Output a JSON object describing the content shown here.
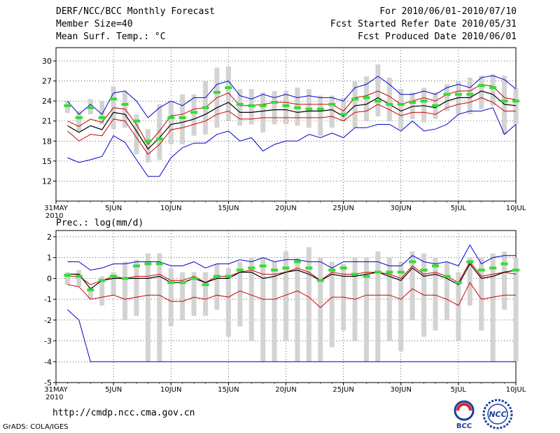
{
  "header": {
    "left": [
      "DERF/NCC/BCC Monthly Forecast",
      "Member Size=40",
      "Mean Surf. Temp.: °C"
    ],
    "right": [
      "For 2010/06/01-2010/07/10",
      "Fcst Started Refer Date 2010/05/31",
      "Fcst Produced Date 2010/06/01"
    ]
  },
  "panel2_title": "Prec.: log(mm/d)",
  "footer": {
    "url": "http://cmdp.ncc.cma.gov.cn",
    "credit": "GrADS: COLA/IGES",
    "logo_bcc": "BCC",
    "logo_ncc": "NCC"
  },
  "colors": {
    "bar": "#d3d3d3",
    "green": "#33dd33",
    "blue": "#0000cc",
    "red": "#cc0000",
    "mean": "#000000"
  },
  "chart_data": [
    {
      "type": "line",
      "title": "Mean Surf. Temp.: °C",
      "x_ticks": [
        {
          "day": 0,
          "label": "31MAY",
          "sub": "2010"
        },
        {
          "day": 5,
          "label": "5JUN"
        },
        {
          "day": 10,
          "label": "10JUN"
        },
        {
          "day": 15,
          "label": "15JUN"
        },
        {
          "day": 20,
          "label": "20JUN"
        },
        {
          "day": 25,
          "label": "25JUN"
        },
        {
          "day": 30,
          "label": "30JUN"
        },
        {
          "day": 35,
          "label": "5JUL"
        },
        {
          "day": 40,
          "label": "10JUL"
        }
      ],
      "xlim": [
        0,
        40
      ],
      "ylim": [
        9,
        32
      ],
      "y_ticks": [
        12,
        15,
        18,
        21,
        24,
        27,
        30
      ],
      "days": [
        1,
        2,
        3,
        4,
        5,
        6,
        7,
        8,
        9,
        10,
        11,
        12,
        13,
        14,
        15,
        16,
        17,
        18,
        19,
        20,
        21,
        22,
        23,
        24,
        25,
        26,
        27,
        28,
        29,
        30,
        31,
        32,
        33,
        34,
        35,
        36,
        37,
        38,
        39,
        40
      ],
      "bars_low": [
        22.2,
        19.5,
        22.0,
        20.5,
        19.8,
        20.0,
        16.0,
        14.8,
        15.2,
        17.5,
        17.5,
        18.8,
        19.0,
        20.0,
        21.0,
        20.3,
        20.5,
        19.3,
        20.5,
        20.5,
        20.3,
        20.0,
        18.8,
        20.0,
        21.0,
        20.0,
        21.0,
        21.7,
        21.0,
        19.8,
        21.3,
        20.8,
        21.3,
        22.5,
        22.0,
        22.0,
        22.8,
        23.3,
        19.0,
        20.5
      ],
      "bars_high": [
        24.0,
        22.5,
        24.3,
        24.0,
        26.2,
        25.5,
        22.0,
        19.8,
        23.5,
        24.0,
        25.0,
        25.0,
        27.0,
        29.0,
        29.2,
        25.8,
        25.8,
        25.3,
        25.5,
        25.5,
        26.0,
        25.8,
        24.8,
        24.8,
        24.5,
        27.0,
        27.7,
        29.5,
        27.5,
        25.8,
        25.3,
        26.0,
        25.3,
        26.5,
        27.0,
        27.5,
        27.8,
        28.0,
        27.8,
        26.0
      ],
      "series": [
        {
          "name": "ensemble max",
          "color": "blue",
          "values": [
            24.0,
            22.0,
            23.5,
            22.0,
            25.2,
            25.5,
            24.0,
            21.5,
            23.0,
            24.0,
            23.3,
            24.5,
            24.5,
            26.5,
            27.0,
            24.8,
            24.3,
            25.0,
            24.5,
            25.0,
            24.5,
            24.8,
            24.5,
            24.5,
            24.0,
            26.0,
            26.5,
            27.7,
            26.5,
            25.0,
            25.0,
            25.5,
            25.0,
            26.0,
            26.5,
            26.0,
            27.5,
            27.8,
            27.2,
            25.8
          ]
        },
        {
          "name": "upper quartile",
          "color": "red",
          "values": [
            21.0,
            20.2,
            21.3,
            20.8,
            23.0,
            22.8,
            20.5,
            17.5,
            19.5,
            21.8,
            22.0,
            22.8,
            23.0,
            24.5,
            25.2,
            23.3,
            23.3,
            23.5,
            23.8,
            23.8,
            23.5,
            23.5,
            23.5,
            23.5,
            22.5,
            24.5,
            24.8,
            25.5,
            24.7,
            23.5,
            24.0,
            24.5,
            24.0,
            25.0,
            25.5,
            25.5,
            26.5,
            26.2,
            24.5,
            24.2
          ]
        },
        {
          "name": "ensemble mean",
          "color": "mean",
          "values": [
            20.3,
            19.3,
            20.3,
            19.7,
            22.3,
            22.0,
            19.5,
            16.8,
            18.5,
            20.5,
            20.8,
            21.3,
            22.0,
            23.0,
            23.8,
            22.3,
            22.3,
            22.5,
            22.7,
            22.7,
            22.3,
            22.5,
            22.5,
            22.7,
            21.7,
            23.3,
            23.5,
            24.5,
            23.5,
            22.5,
            23.2,
            23.3,
            23.0,
            24.0,
            24.5,
            24.5,
            25.5,
            25.0,
            23.5,
            23.3
          ]
        },
        {
          "name": "lower quartile",
          "color": "red",
          "values": [
            19.5,
            18.0,
            19.0,
            18.8,
            21.3,
            21.0,
            18.5,
            16.0,
            17.5,
            19.7,
            20.0,
            20.5,
            21.0,
            22.0,
            22.5,
            21.3,
            21.3,
            21.5,
            21.5,
            21.5,
            21.5,
            21.5,
            21.5,
            21.7,
            21.0,
            22.3,
            22.5,
            23.5,
            22.7,
            21.8,
            22.3,
            22.3,
            22.0,
            23.0,
            23.5,
            23.8,
            24.5,
            23.8,
            22.5,
            22.5
          ]
        },
        {
          "name": "ensemble min",
          "color": "blue",
          "values": [
            15.5,
            14.8,
            15.2,
            15.7,
            18.8,
            17.8,
            15.2,
            12.7,
            12.7,
            15.5,
            17.0,
            17.7,
            17.7,
            19.0,
            19.5,
            18.0,
            18.5,
            16.5,
            17.5,
            18.0,
            18.0,
            19.0,
            18.5,
            19.2,
            18.5,
            20.0,
            20.0,
            20.5,
            20.5,
            19.5,
            21.0,
            19.5,
            19.8,
            20.5,
            22.0,
            22.5,
            22.5,
            23.0,
            19.0,
            20.5
          ]
        }
      ],
      "green_marks": [
        23.3,
        21.5,
        23.0,
        21.5,
        24.3,
        23.5,
        21.0,
        18.0,
        18.3,
        21.5,
        21.5,
        22.3,
        23.0,
        25.3,
        26.0,
        23.5,
        23.3,
        23.3,
        23.8,
        23.3,
        23.0,
        22.8,
        22.8,
        23.5,
        22.0,
        24.3,
        24.5,
        24.0,
        23.5,
        23.5,
        23.8,
        24.0,
        23.3,
        25.0,
        25.0,
        25.0,
        26.3,
        26.0,
        24.0,
        24.0
      ]
    },
    {
      "type": "line",
      "title": "Prec.: log(mm/d)",
      "x_ticks": [
        {
          "day": 0,
          "label": "31MAY",
          "sub": "2010"
        },
        {
          "day": 5,
          "label": "5JUN"
        },
        {
          "day": 10,
          "label": "10JUN"
        },
        {
          "day": 15,
          "label": "15JUN"
        },
        {
          "day": 20,
          "label": "20JUN"
        },
        {
          "day": 25,
          "label": "25JUN"
        },
        {
          "day": 30,
          "label": "30JUN"
        },
        {
          "day": 35,
          "label": "5JUL"
        },
        {
          "day": 40,
          "label": "10JUL"
        }
      ],
      "xlim": [
        0,
        40
      ],
      "ylim": [
        -5,
        2.3
      ],
      "y_ticks": [
        -5,
        -4,
        -3,
        -2,
        -1,
        0,
        1,
        2
      ],
      "days": [
        1,
        2,
        3,
        4,
        5,
        6,
        7,
        8,
        9,
        10,
        11,
        12,
        13,
        14,
        15,
        16,
        17,
        18,
        19,
        20,
        21,
        22,
        23,
        24,
        25,
        26,
        27,
        28,
        29,
        30,
        31,
        32,
        33,
        34,
        35,
        36,
        37,
        38,
        39,
        40
      ],
      "bars_low": [
        -0.3,
        -0.4,
        -1.0,
        -1.3,
        -0.8,
        -2.0,
        -1.8,
        -4.0,
        -4.0,
        -2.3,
        -2.0,
        -1.8,
        -1.8,
        -1.5,
        -2.8,
        -2.3,
        -3.0,
        -4.0,
        -4.0,
        -3.0,
        -4.0,
        -4.0,
        -4.0,
        -3.3,
        -2.5,
        -3.0,
        -4.0,
        -4.0,
        -3.0,
        -3.5,
        -2.0,
        -2.8,
        -2.5,
        -2.0,
        -3.0,
        -1.3,
        -2.5,
        -4.0,
        -1.5,
        -4.0
      ],
      "bars_high": [
        0.3,
        0.4,
        -0.4,
        0.1,
        0.3,
        0.8,
        0.9,
        1.2,
        1.2,
        0.5,
        0.3,
        0.3,
        0.3,
        0.7,
        0.5,
        0.8,
        1.0,
        1.0,
        0.8,
        1.3,
        1.0,
        1.5,
        1.0,
        0.8,
        0.7,
        1.0,
        1.0,
        1.3,
        1.0,
        0.8,
        1.3,
        1.2,
        1.0,
        0.8,
        0.3,
        1.0,
        1.0,
        1.2,
        1.3,
        1.0
      ],
      "series": [
        {
          "name": "ensemble max",
          "color": "blue",
          "values": [
            0.8,
            0.8,
            0.4,
            0.5,
            0.7,
            0.7,
            0.8,
            0.8,
            0.8,
            0.6,
            0.6,
            0.8,
            0.5,
            0.7,
            0.7,
            0.9,
            0.8,
            1.0,
            0.8,
            0.9,
            0.9,
            0.8,
            0.8,
            0.5,
            0.8,
            0.8,
            0.8,
            0.8,
            0.6,
            0.6,
            1.1,
            0.8,
            0.7,
            0.8,
            0.6,
            1.6,
            0.7,
            1.0,
            1.1,
            1.1
          ]
        },
        {
          "name": "upper quartile",
          "color": "red",
          "values": [
            0.1,
            0.1,
            -0.3,
            -0.1,
            0.1,
            0.0,
            0.1,
            0.1,
            0.2,
            -0.1,
            -0.1,
            0.1,
            -0.2,
            0.1,
            0.1,
            0.3,
            0.4,
            0.2,
            0.2,
            0.3,
            0.5,
            0.3,
            -0.1,
            0.3,
            0.2,
            0.2,
            0.3,
            0.3,
            0.2,
            0.0,
            0.6,
            0.2,
            0.3,
            0.1,
            -0.2,
            0.8,
            0.1,
            0.2,
            0.3,
            0.2
          ]
        },
        {
          "name": "ensemble mean",
          "color": "mean",
          "values": [
            0.2,
            0.2,
            -0.5,
            -0.1,
            0.0,
            0.0,
            0.0,
            0.0,
            0.1,
            -0.2,
            -0.2,
            0.0,
            -0.2,
            0.0,
            0.0,
            0.3,
            0.3,
            0.0,
            0.1,
            0.3,
            0.4,
            0.2,
            -0.1,
            0.2,
            0.1,
            0.1,
            0.2,
            0.3,
            0.1,
            -0.1,
            0.5,
            0.1,
            0.2,
            0.0,
            -0.3,
            0.7,
            0.0,
            0.1,
            0.3,
            0.4
          ]
        },
        {
          "name": "lower quartile",
          "color": "red",
          "values": [
            -0.3,
            -0.4,
            -1.0,
            -0.9,
            -0.8,
            -1.0,
            -0.9,
            -0.8,
            -0.8,
            -1.1,
            -1.1,
            -0.9,
            -1.0,
            -0.8,
            -0.9,
            -0.6,
            -0.8,
            -1.0,
            -1.0,
            -0.8,
            -0.6,
            -0.9,
            -1.4,
            -0.9,
            -0.9,
            -1.0,
            -0.8,
            -0.8,
            -0.8,
            -1.0,
            -0.5,
            -0.8,
            -0.8,
            -1.0,
            -1.3,
            -0.2,
            -1.0,
            -0.9,
            -0.8,
            -0.8
          ]
        },
        {
          "name": "ensemble min",
          "color": "blue",
          "values": [
            -1.5,
            -2.0,
            -4.0,
            -4.0,
            -4.0,
            -4.0,
            -4.0,
            -4.0,
            -4.0,
            -4.0,
            -4.0,
            -4.0,
            -4.0,
            -4.0,
            -4.0,
            -4.0,
            -4.0,
            -4.0,
            -4.0,
            -4.0,
            -4.0,
            -4.0,
            -4.0,
            -4.0,
            -4.0,
            -4.0,
            -4.0,
            -4.0,
            -4.0,
            -4.0,
            -4.0,
            -4.0,
            -4.0,
            -4.0,
            -4.0,
            -4.0,
            -4.0,
            -4.0,
            -4.0,
            -4.0
          ]
        }
      ],
      "green_marks": [
        0.15,
        0.1,
        -0.55,
        -0.1,
        0.1,
        0.0,
        0.6,
        0.7,
        0.7,
        -0.2,
        -0.2,
        0.0,
        -0.3,
        0.1,
        0.1,
        0.4,
        0.5,
        0.6,
        0.4,
        0.5,
        0.8,
        0.5,
        -0.1,
        0.4,
        0.5,
        0.2,
        0.1,
        0.3,
        0.3,
        0.3,
        0.8,
        0.4,
        0.6,
        0.1,
        -0.2,
        0.8,
        0.4,
        0.5,
        0.7,
        0.4
      ]
    }
  ]
}
